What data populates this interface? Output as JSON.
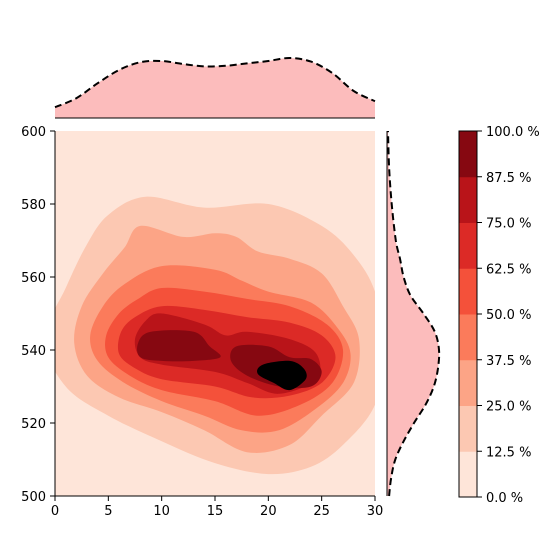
{
  "chart_data": [
    {
      "type": "contour",
      "name": "main-kde",
      "xlim": [
        0,
        30
      ],
      "ylim": [
        500,
        600
      ],
      "xticks": [
        "0",
        "5",
        "10",
        "15",
        "20",
        "25",
        "30"
      ],
      "yticks": [
        "500",
        "520",
        "540",
        "560",
        "580",
        "600"
      ],
      "peaks": [
        {
          "x": 10.5,
          "y": 541,
          "level": 0.85
        },
        {
          "x": 22.5,
          "y": 533,
          "level": 1.0
        }
      ],
      "levels": [
        0.0,
        0.125,
        0.25,
        0.375,
        0.5,
        0.625,
        0.75,
        0.875,
        1.0
      ],
      "colorbar_ticks": [
        "0.0 %",
        "12.5 %",
        "25.0 %",
        "37.5 %",
        "50.0 %",
        "62.5 %",
        "75.0 %",
        "87.5 %",
        "100.0 %"
      ],
      "colors": [
        "#fee5d9",
        "#fcc8b2",
        "#fca486",
        "#fb7b5b",
        "#f4513a",
        "#dc2a26",
        "#b91419",
        "#860811"
      ]
    },
    {
      "type": "area",
      "name": "x-marginal-density",
      "x": [
        0,
        2,
        4,
        6,
        8,
        10,
        12,
        14,
        16,
        18,
        20,
        22,
        24,
        26,
        28,
        30
      ],
      "values": [
        0.18,
        0.33,
        0.58,
        0.8,
        0.93,
        0.95,
        0.9,
        0.86,
        0.87,
        0.91,
        0.95,
        1.0,
        0.94,
        0.75,
        0.45,
        0.28
      ],
      "fill": "#fcbcbc",
      "line": "dashed"
    },
    {
      "type": "area",
      "name": "y-marginal-density",
      "x": [
        500,
        505,
        510,
        515,
        520,
        525,
        530,
        535,
        540,
        545,
        550,
        555,
        560,
        565,
        570,
        580,
        590,
        600
      ],
      "values": [
        0.04,
        0.08,
        0.16,
        0.32,
        0.52,
        0.74,
        0.9,
        0.98,
        1.0,
        0.92,
        0.7,
        0.45,
        0.32,
        0.25,
        0.17,
        0.09,
        0.04,
        0.02
      ],
      "fill": "#fcbcbc",
      "line": "dashed"
    }
  ]
}
